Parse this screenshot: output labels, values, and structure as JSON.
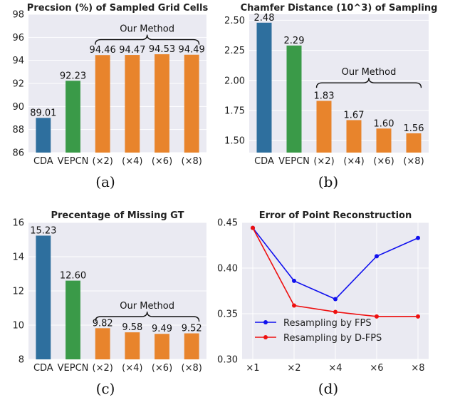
{
  "chart_data": [
    {
      "type": "bar",
      "title": "Precsion (%) of Sampled Grid Cells",
      "caption": "(a)",
      "categories": [
        "CDA",
        "VEPCN",
        "(×2)",
        "(×4)",
        "(×6)",
        "(×8)"
      ],
      "values": [
        89.01,
        92.23,
        94.46,
        94.47,
        94.53,
        94.49
      ],
      "value_labels": [
        "89.01",
        "92.23",
        "94.46",
        "94.47",
        "94.53",
        "94.49"
      ],
      "bar_colors": [
        "#2e6f9e",
        "#3a9a48",
        "#e8842c",
        "#e8842c",
        "#e8842c",
        "#e8842c"
      ],
      "ylim": [
        86,
        98
      ],
      "yticks": [
        86,
        88,
        90,
        92,
        94,
        96,
        98
      ],
      "ytick_labels": [
        "86",
        "88",
        "90",
        "92",
        "94",
        "96",
        "98"
      ],
      "annotation": {
        "text": "Our Method",
        "from_index": 2,
        "to_index": 5,
        "y": 95.8
      },
      "grid": true
    },
    {
      "type": "bar",
      "title": "Chamfer Distance (10^3) of Sampling",
      "caption": "(b)",
      "categories": [
        "CDA",
        "VEPCN",
        "(×2)",
        "(×4)",
        "(×6)",
        "(×8)"
      ],
      "values": [
        2.48,
        2.29,
        1.83,
        1.67,
        1.6,
        1.56
      ],
      "value_labels": [
        "2.48",
        "2.29",
        "1.83",
        "1.67",
        "1.60",
        "1.56"
      ],
      "bar_colors": [
        "#2e6f9e",
        "#3a9a48",
        "#e8842c",
        "#e8842c",
        "#e8842c",
        "#e8842c"
      ],
      "ylim": [
        1.4,
        2.55
      ],
      "yticks": [
        1.5,
        1.75,
        2.0,
        2.25,
        2.5
      ],
      "ytick_labels": [
        "1.50",
        "1.75",
        "2.00",
        "2.25",
        "2.50"
      ],
      "annotation": {
        "text": "Our Method",
        "from_index": 2,
        "to_index": 5,
        "y": 1.98
      },
      "grid": true
    },
    {
      "type": "bar",
      "title": "Precentage of Missing GT",
      "caption": "(c)",
      "categories": [
        "CDA",
        "VEPCN",
        "(×2)",
        "(×4)",
        "(×6)",
        "(×8)"
      ],
      "values": [
        15.23,
        12.6,
        9.82,
        9.58,
        9.49,
        9.52
      ],
      "value_labels": [
        "15.23",
        "12.60",
        "9.82",
        "9.58",
        "9.49",
        "9.52"
      ],
      "bar_colors": [
        "#2e6f9e",
        "#3a9a48",
        "#e8842c",
        "#e8842c",
        "#e8842c",
        "#e8842c"
      ],
      "ylim": [
        8,
        16
      ],
      "yticks": [
        8,
        10,
        12,
        14,
        16
      ],
      "ytick_labels": [
        "8",
        "10",
        "12",
        "14",
        "16"
      ],
      "annotation": {
        "text": "Our Method",
        "from_index": 2,
        "to_index": 5,
        "y": 10.5
      },
      "grid": true
    },
    {
      "type": "line",
      "title": "Error of Point Reconstruction",
      "caption": "(d)",
      "x": [
        "×1",
        "×2",
        "×4",
        "×6",
        "×8"
      ],
      "series": [
        {
          "name": "Resampling by FPS",
          "color": "#1010ee",
          "values": [
            0.444,
            0.386,
            0.366,
            0.413,
            0.433
          ]
        },
        {
          "name": "Resampling by D-FPS",
          "color": "#ee1010",
          "values": [
            0.444,
            0.359,
            0.352,
            0.347,
            0.347
          ]
        }
      ],
      "ylim": [
        0.3,
        0.45
      ],
      "yticks": [
        0.3,
        0.35,
        0.4,
        0.45
      ],
      "ytick_labels": [
        "0.30",
        "0.35",
        "0.40",
        "0.45"
      ],
      "legend": "lower-left",
      "grid": true
    }
  ]
}
